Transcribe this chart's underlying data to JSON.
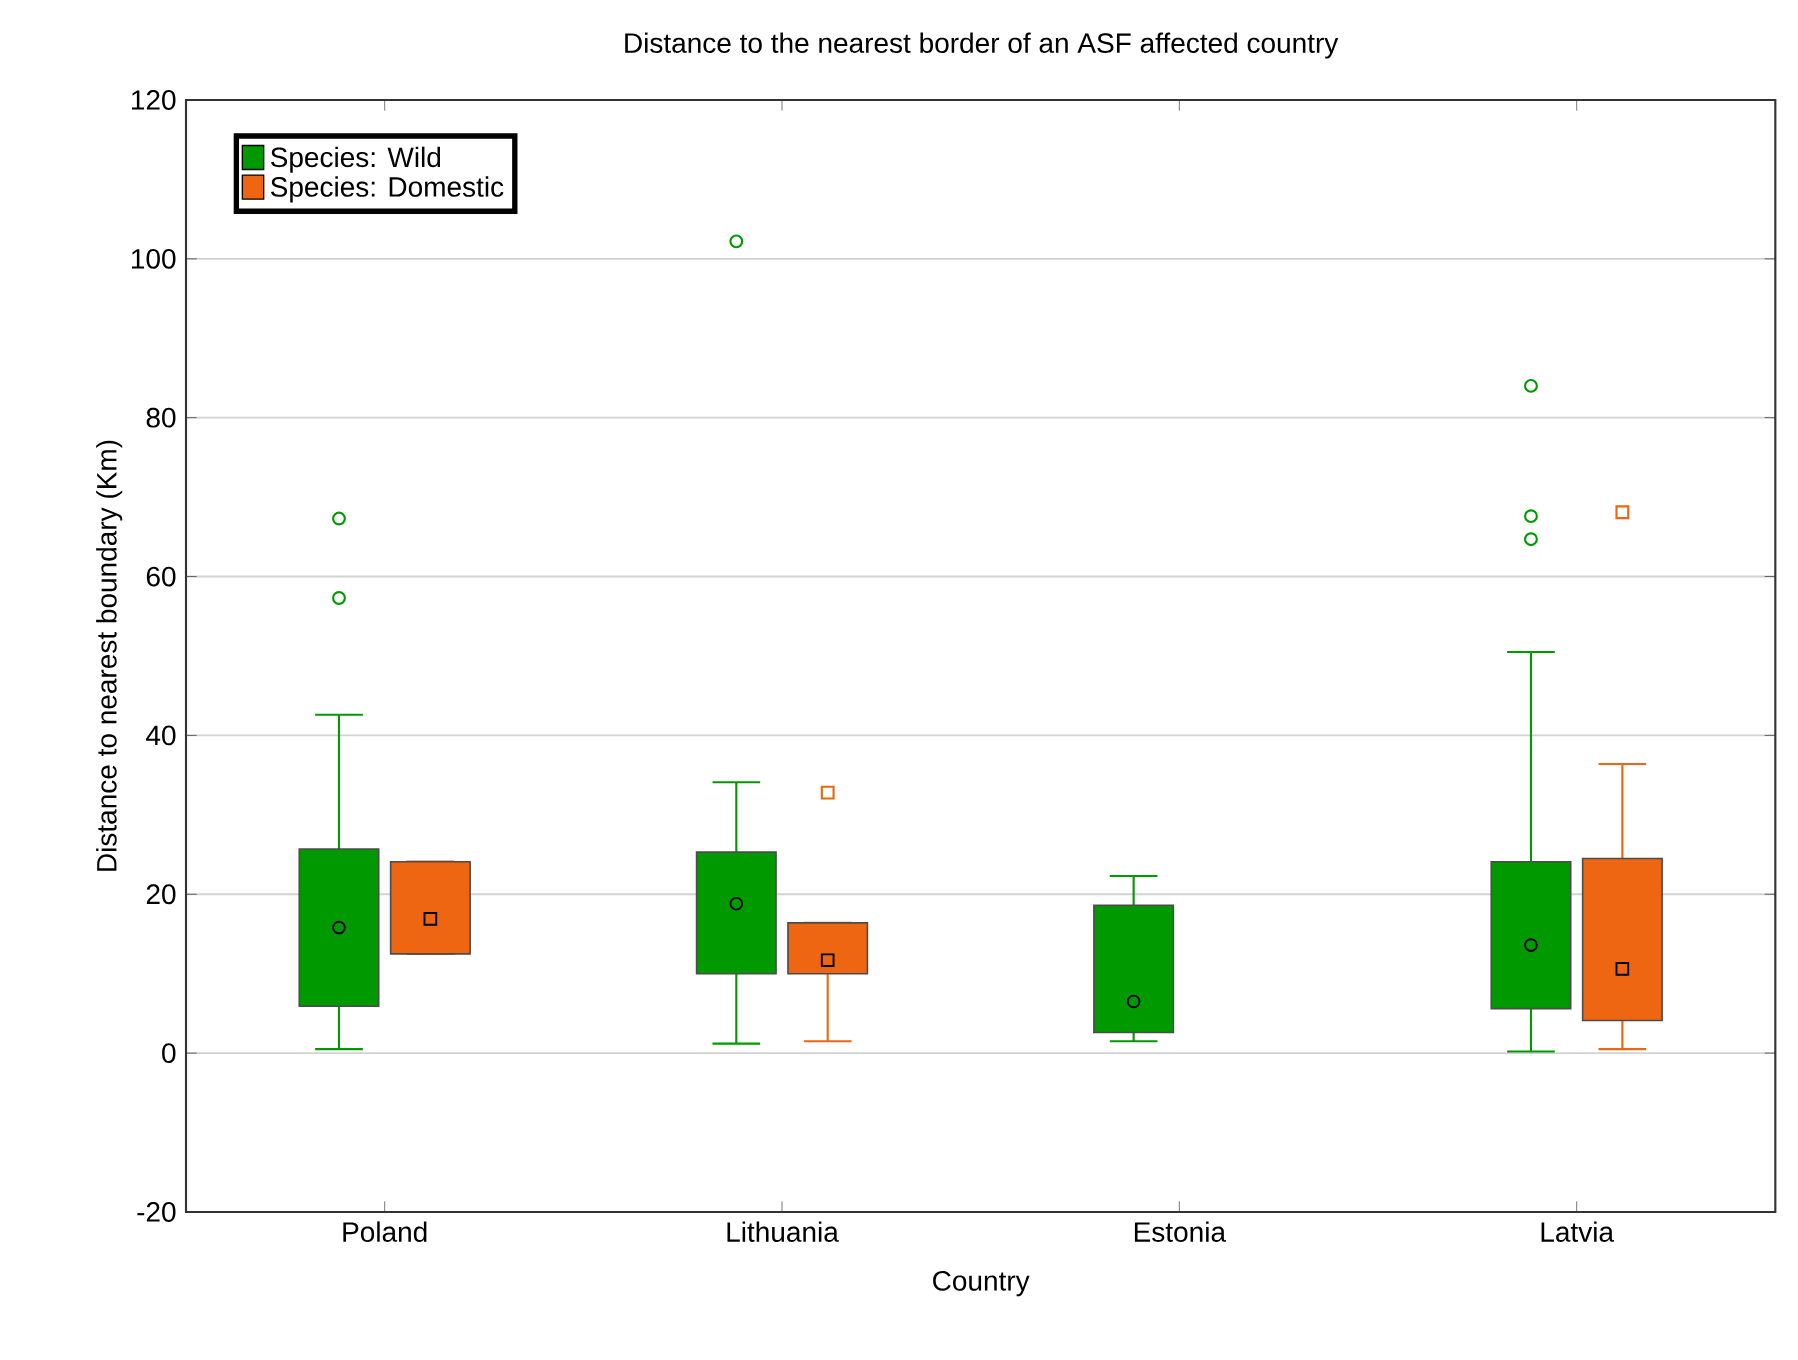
{
  "chart_data": {
    "type": "box",
    "title": "Distance to the nearest border of an ASF affected country",
    "xlabel": "Country",
    "ylabel": "Distance to nearest boundary (Km)",
    "categories": [
      "Poland",
      "Lithuania",
      "Estonia",
      "Latvia"
    ],
    "series": [
      {
        "name": "Species: Wild",
        "color": "#009900",
        "marker": "circle",
        "boxes": [
          {
            "low": 0.5,
            "q1": 5.9,
            "median": 15.8,
            "q3": 25.7,
            "high": 42.6,
            "outliers": [
              67.3,
              57.3
            ]
          },
          {
            "low": 1.2,
            "q1": 10.0,
            "median": 18.8,
            "q3": 25.3,
            "high": 34.1,
            "outliers": [
              102.2
            ]
          },
          {
            "low": 1.5,
            "q1": 2.6,
            "median": 6.5,
            "q3": 18.6,
            "high": 22.3
          },
          {
            "low": 0.2,
            "q1": 5.6,
            "median": 13.6,
            "q3": 24.1,
            "high": 50.5,
            "outliers": [
              84.0,
              67.6,
              64.7
            ]
          }
        ]
      },
      {
        "name": "Species: Domestic",
        "color": "#ee6611",
        "marker": "square",
        "boxes": [
          {
            "low": 12.5,
            "q1": 12.5,
            "median": 16.9,
            "q3": 24.1,
            "high": 24.1
          },
          {
            "low": 1.5,
            "q1": 10.0,
            "median": 11.7,
            "q3": 16.4,
            "high": 16.4,
            "outliers": [
              32.8
            ]
          },
          null,
          {
            "low": 0.5,
            "q1": 4.1,
            "median": 10.6,
            "q3": 24.5,
            "high": 36.4,
            "outliers": [
              68.1
            ]
          }
        ]
      }
    ],
    "ylim": [
      -20,
      120
    ],
    "yticks": [
      -20,
      0,
      20,
      40,
      60,
      80,
      100,
      120
    ],
    "grid": "y",
    "legend": "top left"
  }
}
